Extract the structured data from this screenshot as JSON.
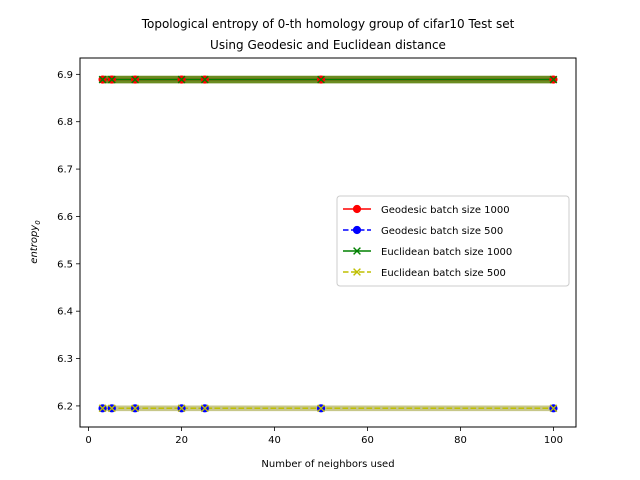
{
  "chart_data": {
    "type": "line",
    "title_line1": "Topological entropy of 0-th homology group of cifar10 Test set",
    "title_line2": "Using Geodesic and Euclidean distance",
    "xlabel": "Number of neighbors used",
    "ylabel_base": "entropy",
    "ylabel_sub": "0",
    "xlim": [
      -1.85,
      104.85
    ],
    "ylim": [
      6.1555,
      6.9345
    ],
    "xticks": [
      0,
      20,
      40,
      60,
      80,
      100
    ],
    "xtick_labels": [
      "0",
      "20",
      "40",
      "60",
      "80",
      "100"
    ],
    "yticks": [
      6.2,
      6.3,
      6.4,
      6.5,
      6.6,
      6.7,
      6.8,
      6.9
    ],
    "ytick_labels": [
      "6.2",
      "6.3",
      "6.4",
      "6.5",
      "6.6",
      "6.7",
      "6.8",
      "6.9"
    ],
    "grid": false,
    "legend_position": "center-right",
    "x": [
      3,
      5,
      10,
      20,
      25,
      50,
      100
    ],
    "series": [
      {
        "name": "Geodesic batch size 1000",
        "values": [
          6.889,
          6.889,
          6.889,
          6.889,
          6.889,
          6.889,
          6.889
        ],
        "color": "#ff0000",
        "linestyle": "solid",
        "marker": "circle"
      },
      {
        "name": "Geodesic batch size 500",
        "values": [
          6.195,
          6.195,
          6.195,
          6.195,
          6.195,
          6.195,
          6.195
        ],
        "color": "#0000ff",
        "linestyle": "dashed",
        "marker": "circle"
      },
      {
        "name": "Euclidean batch size 1000",
        "values": [
          6.889,
          6.889,
          6.889,
          6.889,
          6.889,
          6.889,
          6.889
        ],
        "color": "#008000",
        "linestyle": "solid",
        "marker": "x"
      },
      {
        "name": "Euclidean batch size 500",
        "values": [
          6.195,
          6.195,
          6.195,
          6.195,
          6.195,
          6.195,
          6.195
        ],
        "color": "#bfbf00",
        "linestyle": "dashed",
        "marker": "x"
      }
    ],
    "bands": [
      {
        "series_index": 2,
        "half_width": 0.008,
        "color": "#6b8c21"
      },
      {
        "series_index": 3,
        "half_width": 0.006,
        "color": "#c7c78a"
      }
    ]
  }
}
